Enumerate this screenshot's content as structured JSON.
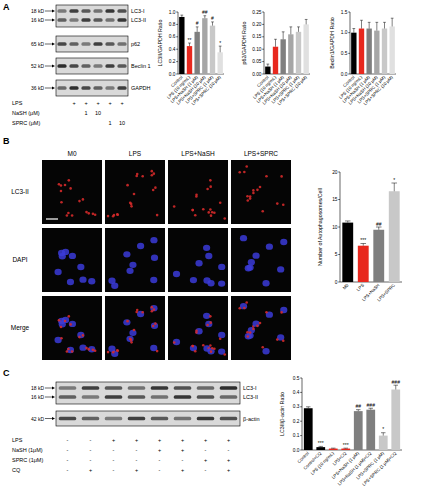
{
  "panels": {
    "A": {
      "label": "A",
      "blot": {
        "rows": [
          {
            "kd": "18 kD",
            "band": "LC3-I"
          },
          {
            "kd": "16 kD",
            "band": "LC3-II"
          },
          {
            "kd": "65 kD",
            "band": "p62"
          },
          {
            "kd": "52 kD",
            "band": "Beclin 1"
          },
          {
            "kd": "36 kD",
            "band": "GAPDH"
          }
        ],
        "treatments": [
          {
            "name": "LPS",
            "lanes": [
              null,
              "+",
              "+",
              "+",
              "+",
              "+"
            ]
          },
          {
            "name": "NaSH (μM)",
            "lanes": [
              null,
              null,
              "1",
              "10",
              null,
              null
            ]
          },
          {
            "name": "SPRC (μM)",
            "lanes": [
              null,
              null,
              null,
              null,
              "1",
              "10"
            ]
          }
        ]
      }
    },
    "B": {
      "label": "B",
      "columns": [
        "M0",
        "LPS",
        "LPS+NaSH",
        "LPS+SPRC"
      ],
      "rows": [
        "LC3-II",
        "DAPI",
        "Merge"
      ]
    },
    "C": {
      "label": "C",
      "blot": {
        "rows": [
          {
            "kd": "18 kD",
            "band": "LC3-I"
          },
          {
            "kd": "16 kD",
            "band": "LC3-II"
          },
          {
            "kd": "42 kD",
            "band": "β-actin"
          }
        ],
        "treatments": [
          {
            "name": "LPS",
            "lanes": [
              "-",
              "-",
              "+",
              "+",
              "+",
              "+",
              "+",
              "+"
            ]
          },
          {
            "name": "NaSH (1μM)",
            "lanes": [
              "-",
              "-",
              "-",
              "-",
              "+",
              "+",
              "-",
              "-"
            ]
          },
          {
            "name": "SPRC (1μM)",
            "lanes": [
              "-",
              "-",
              "-",
              "-",
              "-",
              "-",
              "+",
              "+"
            ]
          },
          {
            "name": "CQ",
            "lanes": [
              "-",
              "+",
              "-",
              "+",
              "-",
              "+",
              "-",
              "+"
            ]
          }
        ]
      }
    }
  },
  "chart_data": [
    {
      "type": "bar",
      "y_label": "LC3II/GAPDH Ratio",
      "categories": [
        "Control",
        "LPS (10 ng/mL)",
        "LPS+NaSH (1 μM)",
        "LPS+NaSH (10 μM)",
        "LPS+SPRC (1 μM)",
        "LPS+SPRC (10 μM)"
      ],
      "values": [
        0.92,
        0.45,
        0.68,
        0.9,
        0.78,
        0.35
      ],
      "errors": [
        0.03,
        0.05,
        0.08,
        0.04,
        0.06,
        0.1
      ],
      "annotations": [
        null,
        "**",
        "#",
        "##",
        "#",
        "*"
      ],
      "colors": [
        "#000000",
        "#e8281e",
        "#7f7f7f",
        "#a6a6a6",
        "#c8c8c8",
        "#e0e0e0"
      ],
      "ylim": [
        0,
        1
      ],
      "yticks": [
        {
          "value": 0,
          "label": "0.0"
        },
        {
          "value": 0.2,
          "label": "0.2"
        },
        {
          "value": 0.4,
          "label": "0.4"
        },
        {
          "value": 0.6,
          "label": "0.6"
        },
        {
          "value": 0.8,
          "label": "0.8"
        },
        {
          "value": 1,
          "label": "1.0"
        }
      ]
    },
    {
      "type": "bar",
      "y_label": "p62/GAPDH Ratio",
      "categories": [
        "Control",
        "LPS (10 ng/mL)",
        "LPS+NaSH (1 μM)",
        "LPS+NaSH (10 μM)",
        "LPS+SPRC (1 μM)",
        "LPS+SPRC (10 μM)"
      ],
      "values": [
        0.03,
        0.11,
        0.14,
        0.16,
        0.17,
        0.2
      ],
      "errors": [
        0.01,
        0.03,
        0.03,
        0.03,
        0.02,
        0.02
      ],
      "colors": [
        "#000000",
        "#e8281e",
        "#7f7f7f",
        "#a6a6a6",
        "#c8c8c8",
        "#e0e0e0"
      ],
      "ylim": [
        0,
        0.25
      ],
      "yticks": [
        {
          "value": 0,
          "label": "0.00"
        },
        {
          "value": 0.05,
          "label": "0.05"
        },
        {
          "value": 0.1,
          "label": "0.10"
        },
        {
          "value": 0.15,
          "label": "0.15"
        },
        {
          "value": 0.2,
          "label": "0.20"
        },
        {
          "value": 0.25,
          "label": "0.25"
        }
      ]
    },
    {
      "type": "bar",
      "y_label": "Beclin1/GAPDH Ratio",
      "categories": [
        "Control",
        "LPS (10 ng/mL)",
        "LPS+NaSH (1 μM)",
        "LPS+NaSH (10 μM)",
        "LPS+SPRC (1 μM)",
        "LPS+SPRC (10 μM)"
      ],
      "values": [
        1.0,
        1.1,
        1.1,
        1.05,
        1.1,
        1.15
      ],
      "errors": [
        0.1,
        0.2,
        0.15,
        0.2,
        0.15,
        0.2
      ],
      "colors": [
        "#000000",
        "#e8281e",
        "#7f7f7f",
        "#a6a6a6",
        "#c8c8c8",
        "#e0e0e0"
      ],
      "ylim": [
        0,
        1.5
      ],
      "yticks": [
        {
          "value": 0,
          "label": "0.0"
        },
        {
          "value": 0.5,
          "label": "0.5"
        },
        {
          "value": 1,
          "label": "1.0"
        },
        {
          "value": 1.5,
          "label": "1.5"
        }
      ]
    },
    {
      "type": "bar",
      "y_label": "Number of Autophagosomes/Cell",
      "categories": [
        "M0",
        "LPS",
        "LPS+NaSH",
        "LPS+SPRC"
      ],
      "values": [
        10.8,
        6.6,
        9.5,
        16.5
      ],
      "errors": [
        0.3,
        0.4,
        0.5,
        1.5
      ],
      "annotations": [
        null,
        "***",
        "##",
        "*"
      ],
      "colors": [
        "#000000",
        "#e8281e",
        "#7f7f7f",
        "#c8c8c8"
      ],
      "ylim": [
        0,
        20
      ],
      "yticks": [
        0,
        5,
        10,
        15,
        20
      ]
    },
    {
      "type": "bar",
      "y_label": "LC3II/β-actin Ratio",
      "categories": [
        "Control",
        "Control+CQ",
        "LPS (10 ng/mL)",
        "LPS+CQ",
        "LPS+NaSH (1 μM)",
        "LPS+NaSH (1 μM)+CQ",
        "LPS+SPRC (1 μM)",
        "LPS+SPRC (1 μM)+CQ"
      ],
      "values": [
        0.29,
        0.02,
        0.01,
        0.01,
        0.27,
        0.28,
        0.1,
        0.42
      ],
      "errors": [
        0.01,
        0.005,
        0.003,
        0.003,
        0.01,
        0.01,
        0.02,
        0.03
      ],
      "annotations": [
        null,
        "***",
        null,
        "***",
        "##",
        "###",
        "*",
        "###"
      ],
      "colors": [
        "#000000",
        "#000000",
        "#e8281e",
        "#e8281e",
        "#7f7f7f",
        "#7f7f7f",
        "#c8c8c8",
        "#c8c8c8"
      ],
      "ylim": [
        0,
        0.5
      ],
      "yticks": [
        {
          "value": 0,
          "label": "0.0"
        },
        {
          "value": 0.1,
          "label": "0.1"
        },
        {
          "value": 0.2,
          "label": "0.2"
        },
        {
          "value": 0.3,
          "label": "0.3"
        },
        {
          "value": 0.4,
          "label": "0.4"
        },
        {
          "value": 0.5,
          "label": "0.5"
        }
      ]
    }
  ]
}
